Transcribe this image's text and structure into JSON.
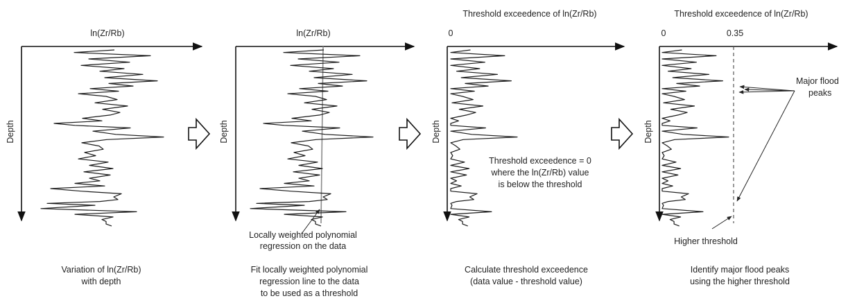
{
  "panels": [
    {
      "top_label": "ln(Zr/Rb)",
      "ylabel": "Depth",
      "caption": [
        "Variation of ln(Zr/Rb)",
        "with depth"
      ]
    },
    {
      "top_label": "ln(Zr/Rb)",
      "ylabel": "Depth",
      "annotation": [
        "Locally weighted polynomial",
        "regression on the data"
      ],
      "caption": [
        "Fit locally weighted polynomial",
        "regression line to the data",
        "to be used as a threshold"
      ]
    },
    {
      "top_label": "Threshold exceedence of ln(Zr/Rb)",
      "zero_tick": "0",
      "ylabel": "Depth",
      "annotation": [
        "Threshold exceedence = 0",
        "where the ln(Zr/Rb) value",
        "is below the threshold"
      ],
      "caption": [
        "Calculate threshold exceedence",
        "(data value - threshold value)"
      ]
    },
    {
      "top_label": "Threshold exceedence of ln(Zr/Rb)",
      "zero_tick": "0",
      "threshold_tick": "0.35",
      "ylabel": "Depth",
      "peaks_label": [
        "Major flood",
        "peaks"
      ],
      "threshold_label": "Higher threshold",
      "caption": [
        "Identify major flood peaks",
        "using the higher threshold"
      ]
    }
  ],
  "colors": {
    "line": "#1a1a1a",
    "regression": "#8a8a8a",
    "threshold": "#555555"
  },
  "icons": [
    "right-arrow-icon",
    "right-arrow-icon",
    "right-arrow-icon"
  ]
}
